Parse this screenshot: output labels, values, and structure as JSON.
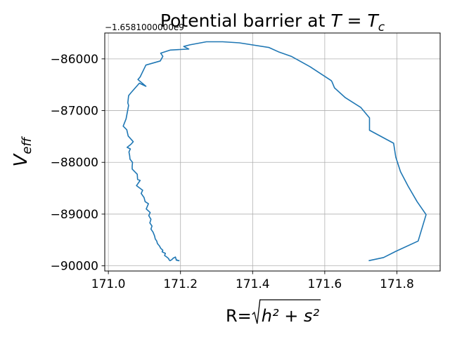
{
  "chart_data": {
    "type": "line",
    "title_base": "Potential barrier at ",
    "title_math": "T = T",
    "title_sub": "c",
    "xlabel_prefix": "R=",
    "xlabel_radicand": "h² + s²",
    "ylabel": "V",
    "ylabel_sub": "eff",
    "y_offset_text": "−1.6581000000e9",
    "xlim": [
      170.99,
      171.92
    ],
    "ylim": [
      -90100,
      -85500
    ],
    "x_ticks": [
      171.0,
      171.2,
      171.4,
      171.6,
      171.8
    ],
    "x_tick_labels": [
      "171.0",
      "171.2",
      "171.4",
      "171.6",
      "171.8"
    ],
    "y_ticks": [
      -90000,
      -89000,
      -88000,
      -87000,
      -86000
    ],
    "y_tick_labels": [
      "−90000",
      "−89000",
      "−88000",
      "−87000",
      "−86000"
    ],
    "grid": true,
    "series_color": "#1f77b4",
    "series": [
      {
        "x": [
          171.722,
          171.763,
          171.797,
          171.859,
          171.881,
          171.856,
          171.831,
          171.81,
          171.797,
          171.791,
          171.724,
          171.724,
          171.7,
          171.657,
          171.627,
          171.62,
          171.618,
          171.559,
          171.507,
          171.474,
          171.445,
          171.363,
          171.317,
          171.272,
          171.226,
          171.209,
          171.223,
          171.172,
          171.145,
          171.151,
          171.144,
          171.104,
          171.088,
          171.082,
          171.104,
          171.086,
          171.062,
          171.056,
          171.054,
          171.056,
          171.049,
          171.041,
          171.051,
          171.055,
          171.069,
          171.063,
          171.052,
          171.061,
          171.057,
          171.059,
          171.06,
          171.067,
          171.066,
          171.066,
          171.08,
          171.081,
          171.088,
          171.078,
          171.095,
          171.091,
          171.099,
          171.102,
          171.111,
          171.105,
          171.116,
          171.112,
          171.118,
          171.115,
          171.121,
          171.118,
          171.124,
          171.128,
          171.13,
          171.134,
          171.136,
          171.142,
          171.145,
          171.151,
          171.149,
          171.158,
          171.156,
          171.162,
          171.167,
          171.168,
          171.171,
          171.176,
          171.18,
          171.186,
          171.188,
          171.195,
          171.188,
          171.197
        ],
        "y": [
          -89900,
          -89840,
          -89720,
          -89520,
          -89010,
          -88760,
          -88460,
          -88180,
          -87900,
          -87630,
          -87380,
          -87140,
          -86940,
          -86750,
          -86560,
          -86440,
          -86420,
          -86150,
          -85950,
          -85870,
          -85780,
          -85690,
          -85670,
          -85670,
          -85730,
          -85760,
          -85810,
          -85830,
          -85890,
          -85950,
          -86040,
          -86120,
          -86350,
          -86400,
          -86530,
          -86470,
          -86660,
          -86710,
          -86850,
          -86900,
          -87160,
          -87300,
          -87370,
          -87490,
          -87600,
          -87650,
          -87710,
          -87740,
          -87800,
          -87870,
          -87940,
          -88000,
          -88070,
          -88130,
          -88230,
          -88330,
          -88350,
          -88450,
          -88540,
          -88600,
          -88680,
          -88760,
          -88800,
          -88900,
          -88970,
          -89030,
          -89100,
          -89170,
          -89230,
          -89290,
          -89350,
          -89420,
          -89480,
          -89520,
          -89570,
          -89620,
          -89660,
          -89700,
          -89730,
          -89760,
          -89800,
          -89830,
          -89860,
          -89880,
          -89900,
          -89880,
          -89850,
          -89830,
          -89880,
          -89900,
          -89890,
          -89900
        ]
      }
    ]
  }
}
